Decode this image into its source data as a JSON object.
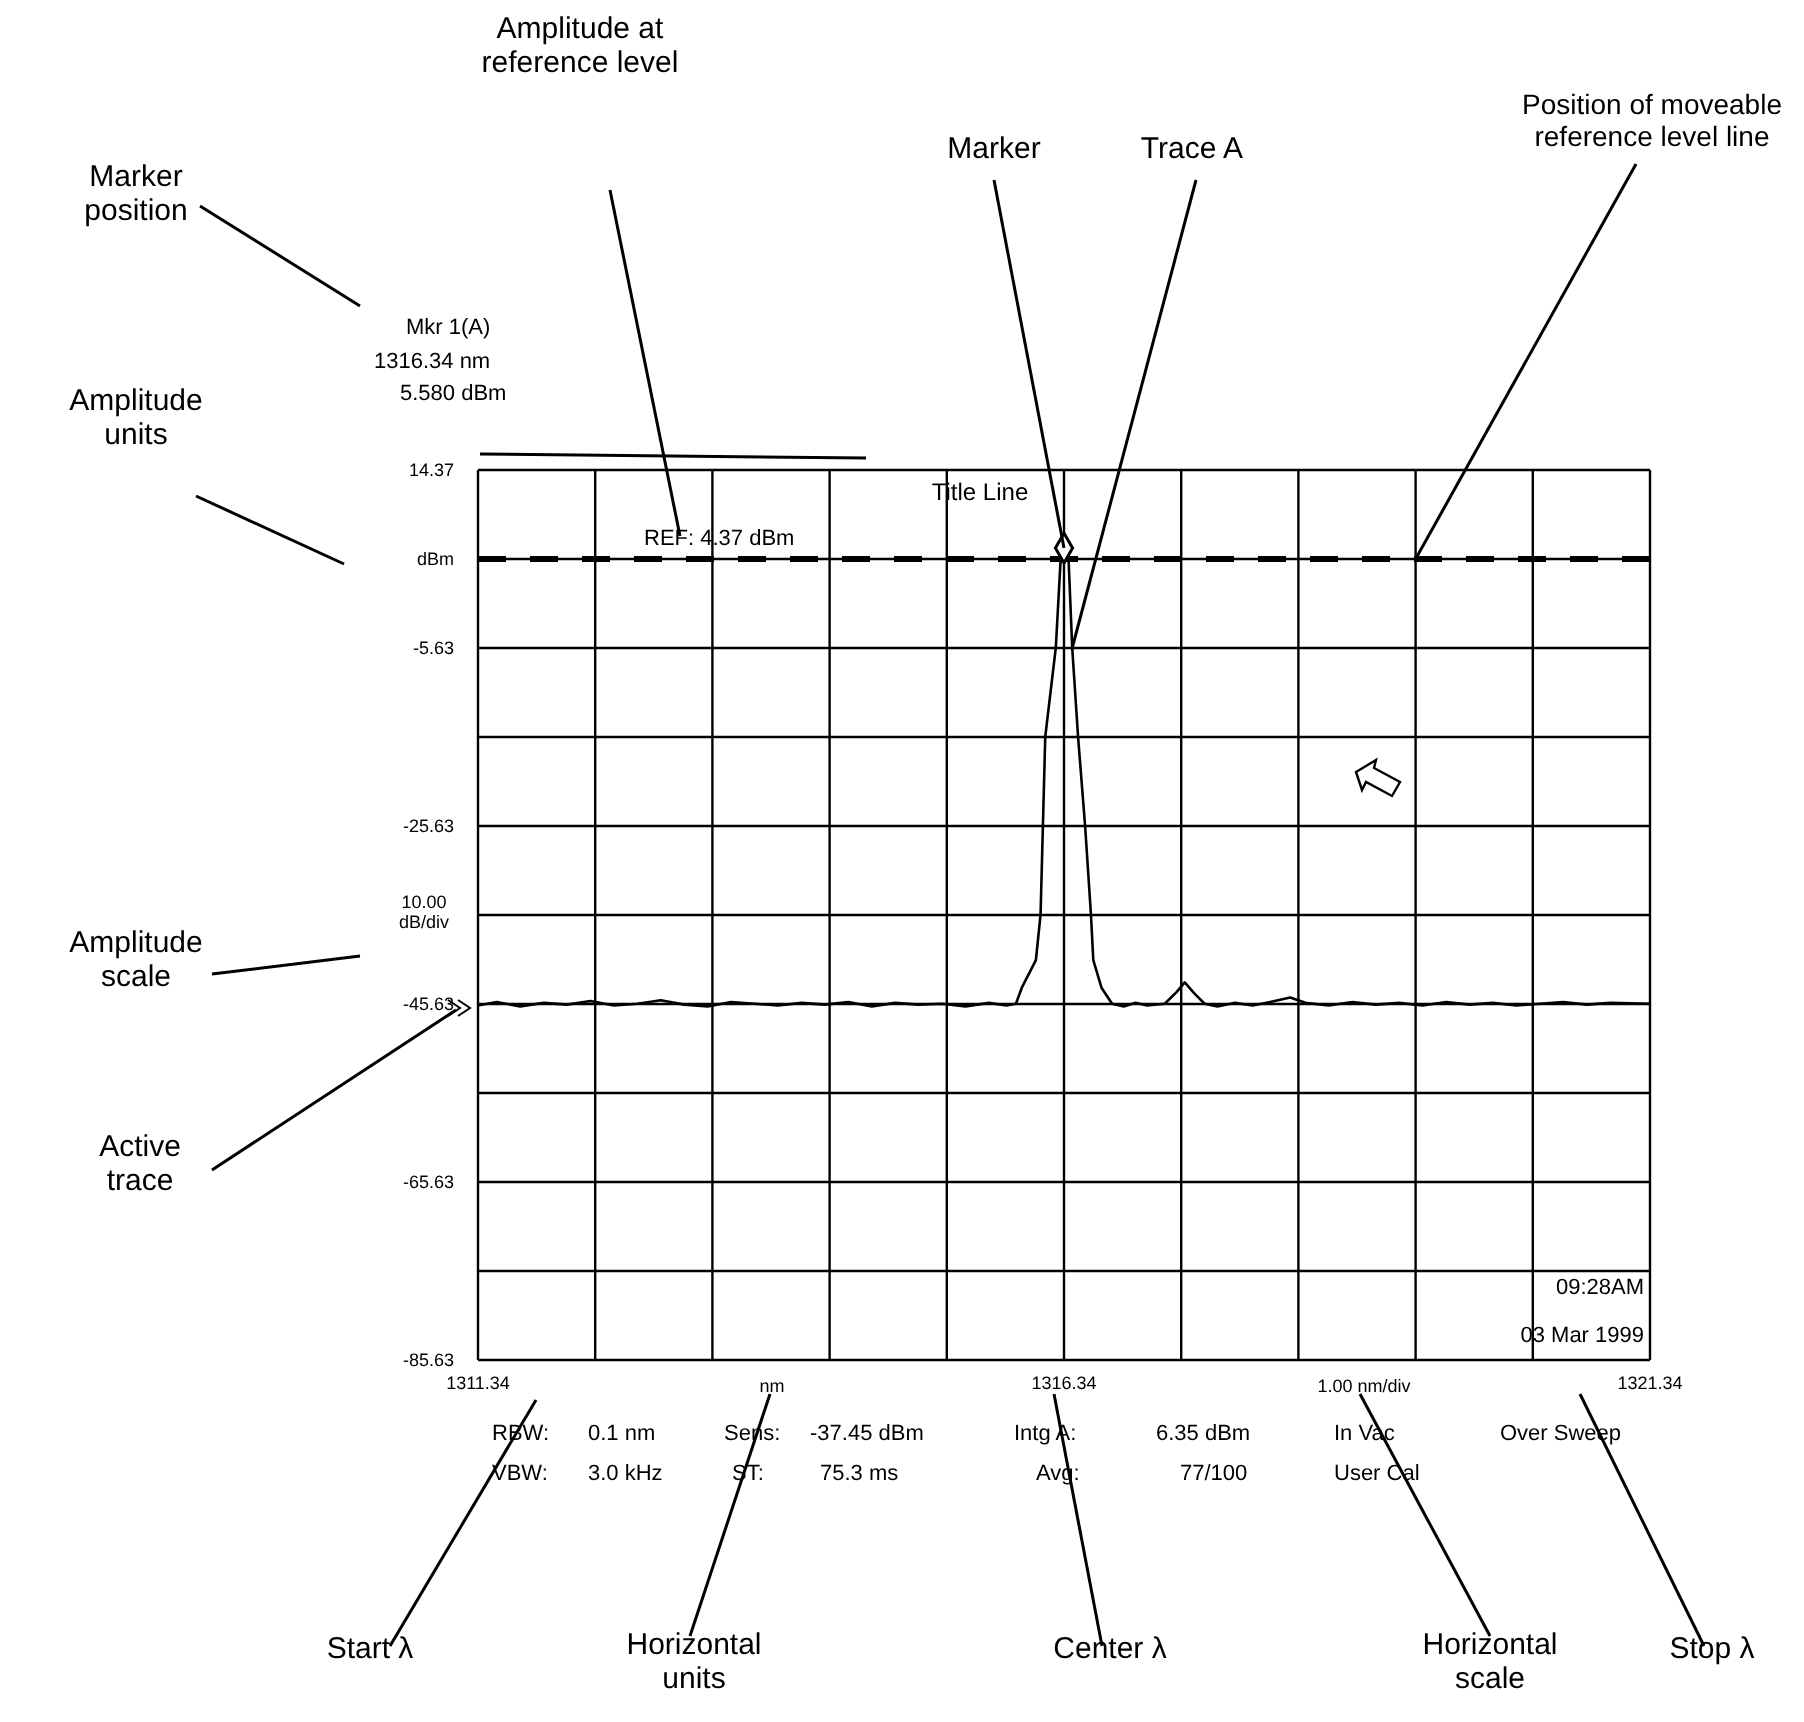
{
  "chart_data": {
    "type": "line",
    "title": "Title Line",
    "xlabel": "1.00 nm/div",
    "ylabel": "10.00 dB/div",
    "xlim": [
      1311.34,
      1321.34
    ],
    "xticks": [
      1311.34,
      {
        "value": 1312.34,
        "label": null
      },
      {
        "value": 1313.34,
        "label": null
      },
      {
        "value": 1314.34,
        "label": null
      },
      {
        "value": 1315.34,
        "label": null
      },
      1316.34,
      {
        "value": 1317.34,
        "label": null
      },
      {
        "value": 1318.34,
        "label": null
      },
      {
        "value": 1319.34,
        "label": null
      },
      {
        "value": 1320.34,
        "label": null
      },
      1321.34
    ],
    "ylim": [
      -85.63,
      14.37
    ],
    "yticks": [
      -85.63,
      {
        "value": -75.63,
        "label": null
      },
      -65.63,
      {
        "value": -55.63,
        "label": null
      },
      -45.63,
      {
        "value": -35.63,
        "label": null
      },
      -25.63,
      {
        "value": -15.63,
        "label": null
      },
      -5.63,
      {
        "value": 4.37,
        "label": "dBm"
      },
      14.37
    ],
    "grid": true,
    "series": [
      {
        "type": "line",
        "color": "#000000",
        "x": [
          1311.34,
          1311.5,
          1311.7,
          1311.9,
          1312.1,
          1312.3,
          1312.5,
          1312.7,
          1312.9,
          1313.1,
          1313.3,
          1313.5,
          1313.7,
          1313.9,
          1314.1,
          1314.3,
          1314.5,
          1314.7,
          1314.9,
          1315.1,
          1315.3,
          1315.5,
          1315.7,
          1315.85,
          1315.93,
          1315.98,
          1316.05,
          1316.1,
          1316.14,
          1316.18,
          1316.27,
          1316.31,
          1316.34,
          1316.38,
          1316.41,
          1316.46,
          1316.52,
          1316.57,
          1316.59,
          1316.66,
          1316.75,
          1316.85,
          1316.95,
          1317.05,
          1317.2,
          1317.3,
          1317.37,
          1317.45,
          1317.54,
          1317.65,
          1317.8,
          1317.95,
          1318.1,
          1318.27,
          1318.4,
          1318.6,
          1318.8,
          1319.0,
          1319.2,
          1319.4,
          1319.6,
          1319.8,
          1320.0,
          1320.2,
          1320.4,
          1320.6,
          1320.8,
          1321.0,
          1321.34
        ],
        "values": [
          -45.8,
          -45.4,
          -45.9,
          -45.5,
          -45.7,
          -45.3,
          -45.8,
          -45.6,
          -45.2,
          -45.7,
          -45.9,
          -45.4,
          -45.6,
          -45.8,
          -45.5,
          -45.7,
          -45.4,
          -45.9,
          -45.5,
          -45.7,
          -45.6,
          -45.9,
          -45.5,
          -45.8,
          -45.6,
          -43.8,
          -42,
          -40.7,
          -35.6,
          -15.6,
          -5.6,
          4,
          5.9,
          4,
          -5.6,
          -15.6,
          -25.6,
          -35.6,
          -40.7,
          -43.8,
          -45.6,
          -45.9,
          -45.5,
          -45.8,
          -45.6,
          -44.3,
          -43.2,
          -44.4,
          -45.6,
          -45.9,
          -45.5,
          -45.8,
          -45.4,
          -44.9,
          -45.5,
          -45.8,
          -45.4,
          -45.7,
          -45.5,
          -45.8,
          -45.4,
          -45.7,
          -45.5,
          -45.8,
          -45.6,
          -45.4,
          -45.7,
          -45.5,
          -45.6
        ]
      },
      {
        "type": "scatter",
        "color": "#000000",
        "marker": "diamond",
        "x": [
          1316.34
        ],
        "values": [
          5.6
        ]
      }
    ],
    "ref_lines": [
      {
        "axis": "y",
        "value": 4.37,
        "label": "REF: 4.37 dBm",
        "color": "#000000",
        "line_style": "dashed"
      }
    ],
    "annotations": [
      "Marker position",
      "Amplitude units",
      "Amplitude scale",
      "Active trace",
      "Amplitude at reference level",
      {
        "text": "Marker",
        "x": 1316.34,
        "y": 5.6
      },
      {
        "text": "Trace A",
        "x": 1316.41,
        "y": -5.63
      },
      {
        "text": "Position of moveable reference level line",
        "x": 1319.34,
        "y": 4.37
      },
      "Start λ",
      "Horizontal units",
      "Center λ",
      "Horizontal scale",
      "Stop λ",
      "Mkr 1(A)",
      "1316.34 nm",
      "5.580 dBm",
      "nm",
      "09:28AM",
      "03 Mar 1999",
      "RBW:",
      "0.1 nm",
      "Sens:",
      "-37.45 dBm",
      "Intg A:",
      "6.35 dBm",
      "In Vac",
      "Over Sweep",
      "VBW:",
      "3.0 kHz",
      "ST:",
      "75.3 ms",
      "Avg:",
      "77/100",
      "User Cal"
    ]
  }
}
